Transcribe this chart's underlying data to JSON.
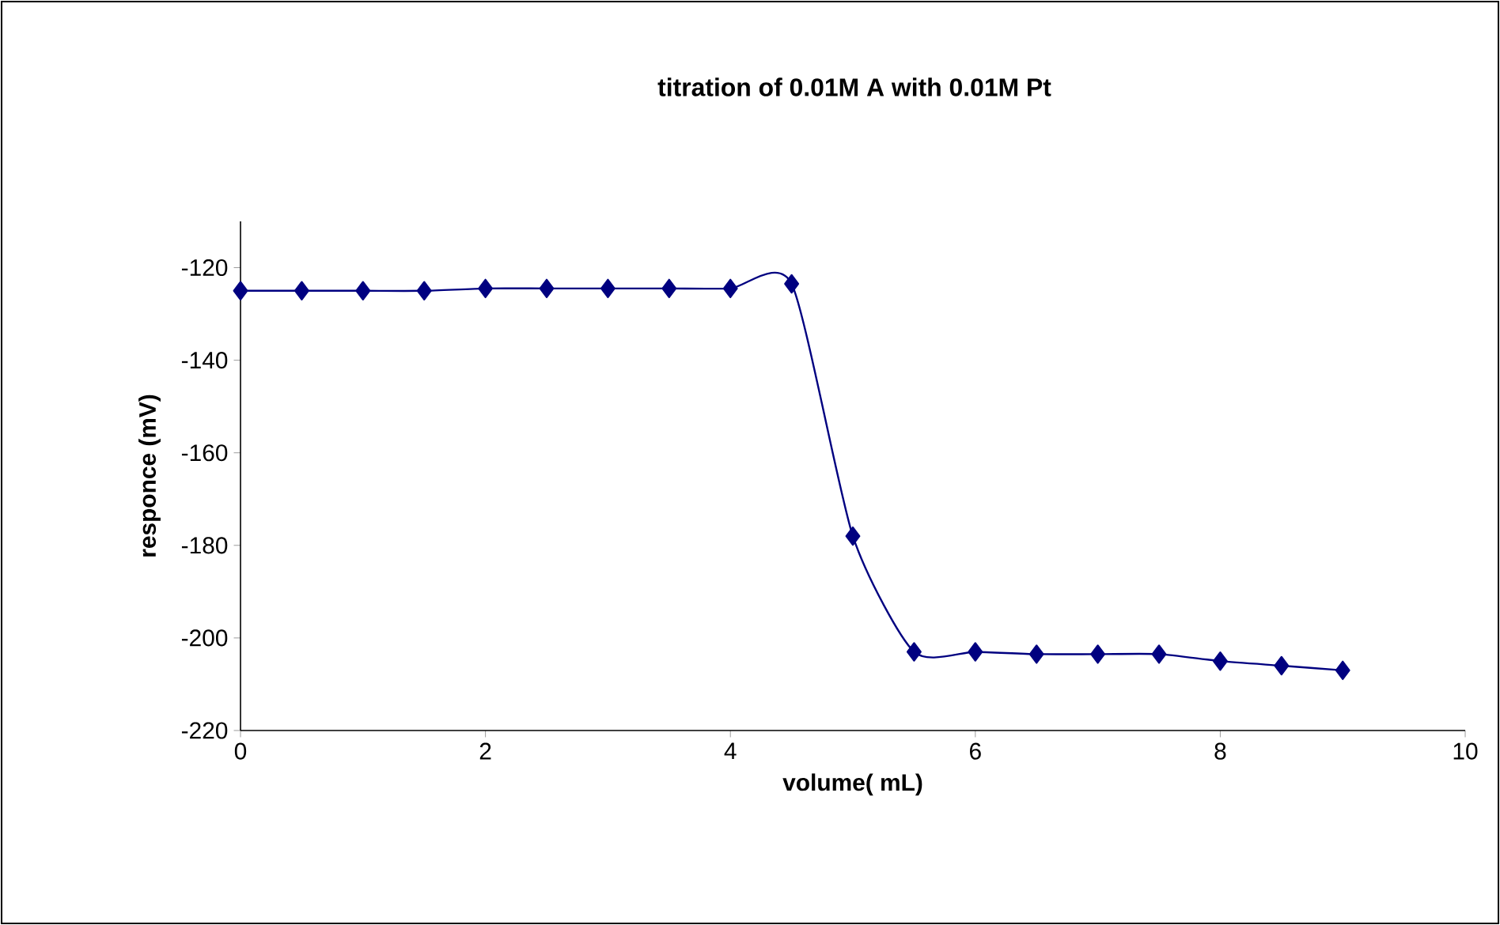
{
  "chart_data": {
    "type": "line",
    "title": "titration of 0.01M A with 0.01M Pt",
    "xlabel": "volume( mL)",
    "ylabel": "responce (mV)",
    "x": [
      0,
      0.5,
      1,
      1.5,
      2,
      2.5,
      3,
      3.5,
      4,
      4.5,
      5,
      5.5,
      6,
      6.5,
      7,
      7.5,
      8,
      8.5,
      9
    ],
    "series": [
      {
        "color": "#000080",
        "values": [
          -125,
          -125,
          -125,
          -125,
          -124.5,
          -124.5,
          -124.5,
          -124.5,
          -124.5,
          -123.5,
          -178,
          -203,
          -203,
          -203.5,
          -203.5,
          -203.5,
          -205,
          -206,
          -207
        ]
      }
    ],
    "xlim": [
      0,
      10
    ],
    "ylim": [
      -220,
      -110
    ],
    "xticks": [
      0,
      2,
      4,
      6,
      8,
      10
    ],
    "yticks": [
      -220,
      -200,
      -180,
      -160,
      -140,
      -120
    ],
    "marker": "diamond",
    "line_style": "solid",
    "grid": false
  }
}
